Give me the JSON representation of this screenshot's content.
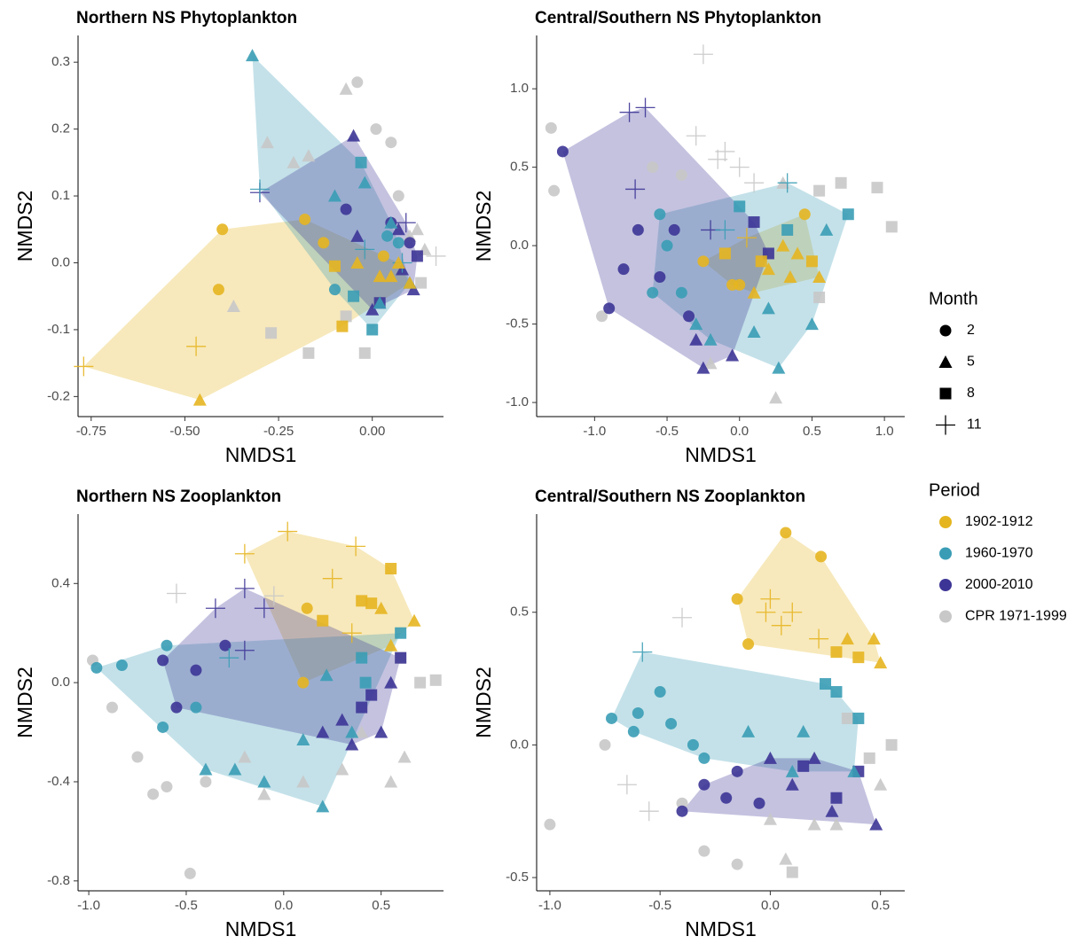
{
  "legend": {
    "month_title": "Month",
    "months": [
      2,
      5,
      8,
      11
    ],
    "shapes": [
      "circle",
      "triangle",
      "square",
      "plus"
    ],
    "period_title": "Period",
    "periods": [
      {
        "name": "1902-1912",
        "color": "#e5b520",
        "hull": true
      },
      {
        "name": "1960-1970",
        "color": "#3a9db5",
        "hull": true
      },
      {
        "name": "2000-2010",
        "color": "#3d3596",
        "hull": true
      },
      {
        "name": "CPR 1971-1999",
        "color": "#c8c8c8",
        "hull": false
      }
    ]
  },
  "chart_data": [
    {
      "type": "scatter",
      "title": "Northern NS Phytoplankton",
      "xlabel": "NMDS1",
      "ylabel": "NMDS2",
      "xlim": [
        -0.785,
        0.19
      ],
      "ylim": [
        -0.23,
        0.34
      ],
      "xticks": [
        {
          "value": -0.75,
          "label": "-0.75"
        },
        {
          "value": -0.5,
          "label": "-0.50"
        },
        -0.25,
        {
          "value": 0,
          "label": "0.00"
        }
      ],
      "yticks": [
        -0.2,
        -0.1,
        {
          "value": 0,
          "label": "0.0"
        },
        0.1,
        0.2,
        0.3
      ],
      "series": [
        {
          "x": [
            -0.77,
            -0.47,
            -0.4,
            -0.46,
            -0.41,
            -0.18,
            -0.1,
            -0.04,
            0.02,
            0.05,
            0.07,
            0.1,
            -0.13,
            -0.08,
            0.03
          ],
          "y": [
            -0.155,
            -0.125,
            0.05,
            -0.205,
            -0.04,
            0.065,
            -0.005,
            0.0,
            -0.02,
            -0.02,
            0.0,
            -0.03,
            0.03,
            -0.095,
            0.01
          ],
          "month": [
            11,
            11,
            2,
            5,
            2,
            2,
            8,
            5,
            5,
            5,
            5,
            5,
            2,
            8,
            2
          ]
        },
        {
          "x": [
            -0.32,
            -0.3,
            -0.1,
            -0.02,
            -0.03,
            0.05,
            0.07,
            -0.05,
            0.0,
            0.02,
            -0.1,
            0.1,
            0.08,
            -0.02,
            0.04
          ],
          "y": [
            0.31,
            0.11,
            0.1,
            0.12,
            0.15,
            0.06,
            0.03,
            -0.05,
            -0.1,
            -0.06,
            -0.04,
            -0.03,
            0.0,
            0.02,
            0.04
          ],
          "month": [
            5,
            11,
            5,
            5,
            8,
            5,
            2,
            8,
            8,
            5,
            2,
            5,
            11,
            11,
            2
          ]
        },
        {
          "x": [
            -0.3,
            -0.05,
            -0.04,
            0.05,
            0.07,
            0.1,
            0.12,
            0.08,
            0.02,
            0.0,
            0.11,
            -0.07,
            0.09
          ],
          "y": [
            0.105,
            0.19,
            0.04,
            0.06,
            0.05,
            0.03,
            0.01,
            -0.01,
            -0.06,
            -0.07,
            -0.04,
            0.08,
            0.06
          ],
          "month": [
            11,
            5,
            5,
            2,
            5,
            2,
            8,
            5,
            8,
            5,
            5,
            2,
            11
          ]
        },
        {
          "x": [
            -0.37,
            -0.17,
            -0.07,
            -0.04,
            0.01,
            0.05,
            0.07,
            0.1,
            0.14,
            0.17,
            -0.27,
            -0.17,
            -0.21,
            -0.28,
            -0.02,
            -0.07,
            0.13,
            0.12
          ],
          "y": [
            -0.065,
            0.16,
            0.26,
            0.27,
            0.2,
            0.18,
            0.1,
            0.04,
            0.02,
            0.01,
            -0.105,
            -0.135,
            0.15,
            0.18,
            -0.135,
            -0.08,
            -0.03,
            0.05
          ],
          "month": [
            5,
            5,
            5,
            2,
            2,
            2,
            2,
            5,
            5,
            11,
            8,
            8,
            5,
            5,
            8,
            8,
            8,
            5
          ]
        }
      ]
    },
    {
      "type": "scatter",
      "title": "Central/Southern NS Phytoplankton",
      "xlabel": "NMDS1",
      "ylabel": "NMDS2",
      "xlim": [
        -1.4,
        1.14
      ],
      "ylim": [
        -1.09,
        1.34
      ],
      "xticks": [
        {
          "value": -1,
          "label": "-1.0"
        },
        -0.5,
        {
          "value": 0,
          "label": "0.0"
        },
        0.5,
        {
          "value": 1,
          "label": "1.0"
        }
      ],
      "yticks": [
        {
          "value": -1,
          "label": "-1.0"
        },
        -0.5,
        {
          "value": 0,
          "label": "0.0"
        },
        0.5,
        {
          "value": 1,
          "label": "1.0"
        }
      ],
      "series": [
        {
          "x": [
            -0.25,
            0.45,
            0.5,
            0.3,
            0.1,
            0.0,
            -0.1,
            0.2,
            0.4,
            0.55,
            0.15,
            -0.05,
            0.35,
            0.05
          ],
          "y": [
            -0.1,
            0.2,
            -0.1,
            0.0,
            -0.3,
            -0.25,
            -0.05,
            -0.15,
            -0.05,
            -0.2,
            -0.1,
            -0.25,
            -0.2,
            0.05
          ],
          "month": [
            2,
            2,
            8,
            5,
            5,
            2,
            8,
            5,
            5,
            5,
            8,
            2,
            5,
            11
          ]
        },
        {
          "x": [
            -0.55,
            -0.6,
            -0.3,
            0.33,
            0.75,
            0.6,
            0.5,
            0.27,
            0.1,
            -0.2,
            -0.4,
            -0.1,
            0.2,
            -0.5,
            0.0,
            0.33
          ],
          "y": [
            0.2,
            -0.3,
            -0.5,
            0.4,
            0.2,
            0.1,
            -0.5,
            -0.78,
            -0.55,
            -0.6,
            -0.3,
            0.1,
            -0.4,
            0.0,
            0.25,
            0.1
          ],
          "month": [
            2,
            2,
            5,
            11,
            8,
            5,
            5,
            5,
            5,
            5,
            2,
            11,
            5,
            2,
            8,
            8
          ]
        },
        {
          "x": [
            -1.22,
            -0.76,
            -0.72,
            -0.65,
            -0.45,
            -0.25,
            -0.05,
            -0.9,
            -0.55,
            -0.35,
            -0.2,
            0.1,
            0.2,
            -0.7,
            -0.3,
            -0.8
          ],
          "y": [
            0.6,
            0.85,
            0.36,
            0.88,
            0.1,
            -0.78,
            -0.7,
            -0.4,
            -0.2,
            -0.45,
            0.1,
            0.15,
            -0.05,
            0.1,
            -0.6,
            -0.15
          ],
          "month": [
            2,
            11,
            11,
            11,
            2,
            5,
            5,
            2,
            2,
            2,
            11,
            8,
            8,
            2,
            5,
            2
          ]
        },
        {
          "x": [
            -1.3,
            -1.28,
            -0.95,
            -0.15,
            -0.1,
            0.0,
            0.25,
            0.55,
            0.7,
            0.95,
            1.05,
            0.3,
            -0.6,
            -0.4,
            -0.3,
            0.55,
            -0.2,
            0.1,
            -0.25
          ],
          "y": [
            0.75,
            0.35,
            -0.45,
            0.55,
            0.6,
            0.5,
            -0.97,
            -0.33,
            0.4,
            0.37,
            0.12,
            0.4,
            0.5,
            0.45,
            0.7,
            0.35,
            -0.75,
            0.4,
            1.22
          ],
          "month": [
            2,
            2,
            2,
            11,
            11,
            11,
            5,
            8,
            8,
            8,
            8,
            5,
            2,
            2,
            11,
            8,
            5,
            11,
            11
          ]
        }
      ]
    },
    {
      "type": "scatter",
      "title": "Northern NS Zooplankton",
      "xlabel": "NMDS1",
      "ylabel": "NMDS2",
      "xlim": [
        -1.055,
        0.82
      ],
      "ylim": [
        -0.84,
        0.68
      ],
      "xticks": [
        {
          "value": -1,
          "label": "-1.0"
        },
        -0.5,
        {
          "value": 0,
          "label": "0.0"
        },
        0.5
      ],
      "yticks": [
        -0.8,
        -0.4,
        {
          "value": 0,
          "label": "0.0"
        },
        0.4
      ],
      "series": [
        {
          "x": [
            -0.2,
            0.02,
            0.37,
            0.55,
            0.67,
            0.45,
            0.12,
            0.25,
            0.4,
            0.5,
            0.1,
            0.55,
            0.35,
            0.2
          ],
          "y": [
            0.52,
            0.61,
            0.55,
            0.46,
            0.25,
            0.32,
            0.3,
            0.42,
            0.33,
            0.3,
            0.0,
            0.15,
            0.2,
            0.25
          ],
          "month": [
            11,
            11,
            11,
            8,
            5,
            8,
            2,
            11,
            8,
            5,
            2,
            5,
            11,
            8
          ]
        },
        {
          "x": [
            -0.96,
            -0.83,
            -0.62,
            -0.6,
            -0.1,
            -0.45,
            -0.25,
            0.2,
            0.42,
            0.6,
            -0.28,
            0.22,
            -0.4,
            0.1,
            0.35,
            0.4
          ],
          "y": [
            0.06,
            0.07,
            -0.18,
            0.15,
            -0.4,
            -0.1,
            -0.35,
            -0.5,
            0.0,
            0.2,
            0.1,
            0.03,
            -0.35,
            -0.23,
            -0.2,
            0.1
          ],
          "month": [
            2,
            2,
            2,
            2,
            5,
            2,
            5,
            5,
            8,
            8,
            11,
            5,
            5,
            5,
            5,
            8
          ]
        },
        {
          "x": [
            -0.62,
            -0.55,
            -0.45,
            -0.3,
            -0.2,
            -0.1,
            0.2,
            0.3,
            0.45,
            0.5,
            0.6,
            0.4,
            -0.35,
            -0.2,
            0.55,
            0.35
          ],
          "y": [
            0.09,
            -0.1,
            0.05,
            0.15,
            0.38,
            0.3,
            -0.2,
            -0.15,
            -0.05,
            -0.2,
            0.1,
            -0.1,
            0.3,
            0.13,
            0.0,
            -0.25
          ],
          "month": [
            2,
            2,
            2,
            2,
            11,
            11,
            5,
            5,
            8,
            5,
            8,
            8,
            11,
            11,
            5,
            5
          ]
        },
        {
          "x": [
            -0.98,
            -0.88,
            -0.67,
            -0.6,
            -0.48,
            -0.4,
            -0.2,
            -0.1,
            0.1,
            0.3,
            0.55,
            0.62,
            0.7,
            0.78,
            0.4,
            -0.55,
            -0.75,
            -0.05,
            0.6
          ],
          "y": [
            0.09,
            -0.1,
            -0.45,
            -0.42,
            -0.77,
            -0.4,
            -0.3,
            -0.45,
            -0.4,
            -0.35,
            -0.4,
            -0.3,
            0.0,
            0.01,
            -0.2,
            0.36,
            -0.3,
            0.35,
            0.1
          ],
          "month": [
            2,
            2,
            2,
            2,
            2,
            2,
            5,
            5,
            5,
            5,
            5,
            5,
            8,
            8,
            5,
            11,
            2,
            11,
            8
          ]
        }
      ]
    },
    {
      "type": "scatter",
      "title": "Central/Southern NS Zooplankton",
      "xlabel": "NMDS1",
      "ylabel": "NMDS2",
      "xlim": [
        -1.06,
        0.61
      ],
      "ylim": [
        -0.55,
        0.87
      ],
      "xticks": [
        {
          "value": -1,
          "label": "-1.0"
        },
        -0.5,
        {
          "value": 0,
          "label": "0.0"
        },
        0.5
      ],
      "yticks": [
        -0.5,
        {
          "value": 0,
          "label": "0.0"
        },
        0.5
      ],
      "series": [
        {
          "x": [
            0.07,
            0.23,
            0.47,
            0.5,
            0.3,
            0.1,
            0.0,
            -0.15,
            -0.1,
            0.35,
            0.4,
            0.22,
            -0.02,
            0.05
          ],
          "y": [
            0.8,
            0.71,
            0.4,
            0.31,
            0.35,
            0.5,
            0.55,
            0.55,
            0.38,
            0.4,
            0.33,
            0.4,
            0.5,
            0.45
          ],
          "month": [
            2,
            2,
            5,
            5,
            8,
            11,
            11,
            2,
            2,
            5,
            8,
            11,
            11,
            11
          ]
        },
        {
          "x": [
            -0.58,
            -0.72,
            -0.62,
            -0.5,
            -0.35,
            -0.1,
            0.1,
            0.25,
            0.4,
            0.3,
            0.15,
            -0.3,
            -0.45,
            -0.6,
            0.38
          ],
          "y": [
            0.35,
            0.1,
            0.05,
            0.2,
            0.0,
            0.05,
            -0.1,
            0.23,
            0.1,
            0.2,
            0.05,
            -0.05,
            0.08,
            0.12,
            -0.1
          ],
          "month": [
            11,
            2,
            2,
            2,
            2,
            5,
            5,
            8,
            8,
            8,
            5,
            2,
            2,
            2,
            5
          ]
        },
        {
          "x": [
            -0.4,
            -0.2,
            0.1,
            0.28,
            0.48,
            0.4,
            0.0,
            -0.3,
            -0.15,
            0.2,
            0.3,
            -0.05,
            0.15
          ],
          "y": [
            -0.25,
            -0.2,
            -0.15,
            -0.25,
            -0.3,
            -0.1,
            -0.05,
            -0.15,
            -0.1,
            -0.05,
            -0.2,
            -0.22,
            -0.08
          ],
          "month": [
            2,
            2,
            5,
            5,
            5,
            8,
            5,
            2,
            2,
            5,
            8,
            2,
            8
          ]
        },
        {
          "x": [
            -1.0,
            -0.75,
            -0.4,
            -0.3,
            -0.15,
            0.0,
            0.07,
            0.1,
            0.3,
            0.5,
            0.55,
            0.45,
            0.35,
            -0.55,
            -0.65,
            -0.4,
            0.2
          ],
          "y": [
            -0.3,
            0.0,
            -0.22,
            -0.4,
            -0.45,
            -0.28,
            -0.43,
            -0.48,
            -0.3,
            -0.15,
            0.0,
            -0.05,
            0.1,
            -0.25,
            -0.15,
            0.48,
            -0.3
          ],
          "month": [
            2,
            2,
            2,
            2,
            2,
            5,
            5,
            8,
            5,
            5,
            8,
            8,
            8,
            11,
            11,
            11,
            5
          ]
        }
      ]
    }
  ]
}
